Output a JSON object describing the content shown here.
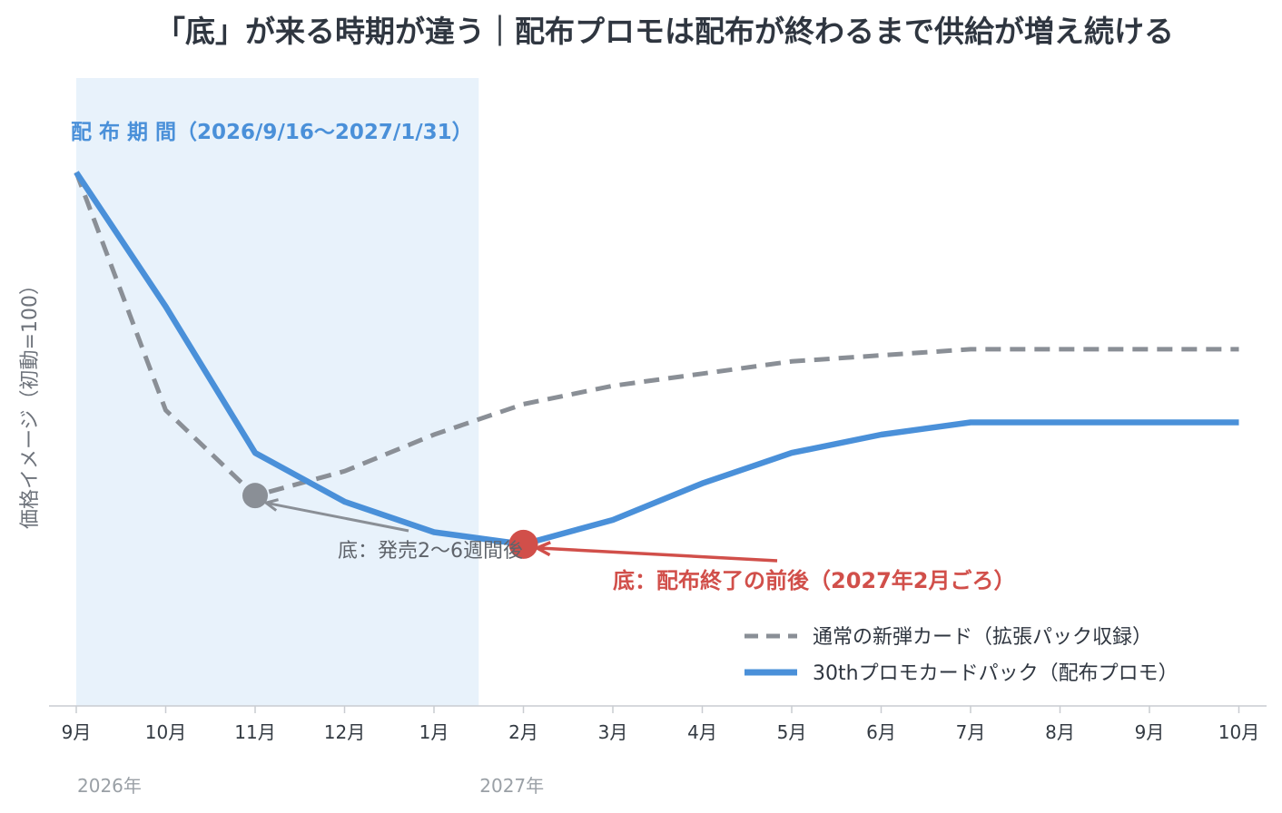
{
  "colors": {
    "promo": "#4a90d9",
    "regular": "#8a8f96",
    "bottom_promo": "#d14f4a",
    "bottom_regular": "#8a8f96",
    "period_bg": "#e8f2fb",
    "axis": "#c9ccd1"
  },
  "chart_data": {
    "type": "line",
    "title": "「底」が来る時期が違う｜配布プロモは配布が終わるまで供給が増え続ける",
    "ylabel": "価格イメージ（初動=100）",
    "xlabel": "",
    "ylim": [
      0,
      100
    ],
    "categories": [
      "9月",
      "10月",
      "11月",
      "12月",
      "1月",
      "2月",
      "3月",
      "4月",
      "5月",
      "6月",
      "7月",
      "8月",
      "9月",
      "10月"
    ],
    "year_labels": [
      {
        "label": "2026年",
        "at_index": 0
      },
      {
        "label": "2027年",
        "at_index": 4.5
      }
    ],
    "series": [
      {
        "name": "通常の新弾カード（拡張パック収録）",
        "style": "dashed",
        "values": [
          100,
          61,
          47,
          51,
          57,
          62,
          65,
          67,
          69,
          70,
          71,
          71,
          71,
          71
        ]
      },
      {
        "name": "30thプロモカードパック（配布プロモ）",
        "style": "solid",
        "values": [
          100,
          78,
          54,
          46,
          41,
          39,
          43,
          49,
          54,
          57,
          59,
          59,
          59,
          59
        ]
      }
    ],
    "shaded_region": {
      "label": "配 布 期 間（2026/9/16〜2027/1/31）",
      "start_index": 0,
      "end_index": 4.5
    },
    "annotations": [
      {
        "text": "底：発売2〜6週間後",
        "series": 0,
        "point_index": 2
      },
      {
        "text": "底：配布終了の前後（2027年2月ごろ）",
        "series": 1,
        "point_index": 5
      }
    ],
    "legend": {
      "placement": "bottom-right"
    },
    "grid": false
  }
}
